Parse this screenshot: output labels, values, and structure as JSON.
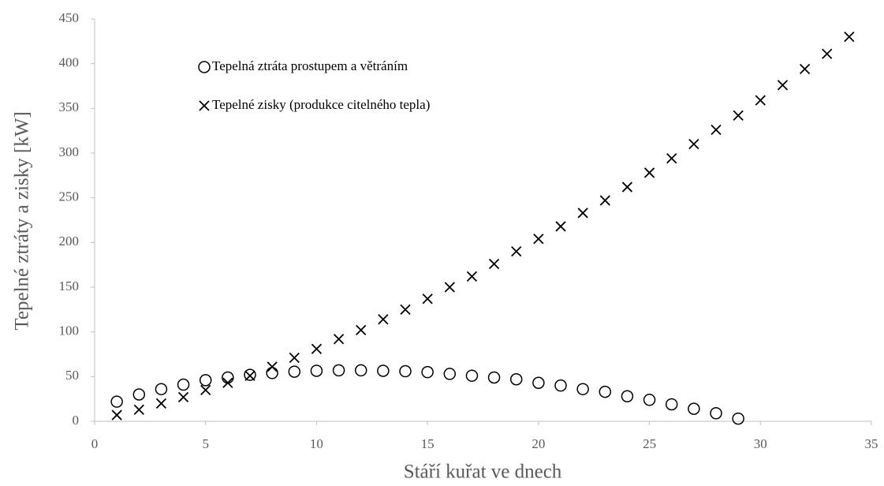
{
  "chart_data": {
    "type": "scatter",
    "xlabel": "Stáří kuřat ve dnech",
    "ylabel": "Tepelné ztráty a zisky [kW]",
    "xlim": [
      0,
      35
    ],
    "xticks": [
      0,
      5,
      10,
      15,
      20,
      25,
      30,
      35
    ],
    "ylim": [
      0,
      450
    ],
    "yticks": [
      0,
      50,
      100,
      150,
      200,
      250,
      300,
      350,
      400,
      450
    ],
    "grid": false,
    "legend": "upper left",
    "series": [
      {
        "name": "Tepelná ztráta prostupem a větráním",
        "color": "#000000",
        "marker": "circle",
        "x": [
          1,
          2,
          3,
          4,
          5,
          6,
          7,
          8,
          9,
          10,
          11,
          12,
          13,
          14,
          15,
          16,
          17,
          18,
          19,
          20,
          21,
          22,
          23,
          24,
          25,
          26,
          27,
          28,
          29
        ],
        "values": [
          22,
          30,
          36,
          41,
          46,
          49,
          52,
          54,
          55.5,
          56.5,
          57,
          57,
          56.5,
          56,
          55,
          53,
          51,
          49,
          47,
          43,
          40,
          36,
          33,
          28,
          24,
          19,
          14,
          9,
          3
        ]
      },
      {
        "name": "Tepelné zisky (produkce citelného tepla)",
        "color": "#000000",
        "marker": "x",
        "x": [
          1,
          2,
          3,
          4,
          5,
          6,
          7,
          8,
          9,
          10,
          11,
          12,
          13,
          14,
          15,
          16,
          17,
          18,
          19,
          20,
          21,
          22,
          23,
          24,
          25,
          26,
          27,
          28,
          29,
          30,
          31,
          32,
          33,
          34
        ],
        "values": [
          7,
          13,
          20,
          27,
          35,
          43,
          51,
          61,
          71,
          81,
          92,
          102,
          114,
          125,
          137,
          150,
          162,
          176,
          190,
          204,
          218,
          233,
          247,
          262,
          278,
          294,
          310,
          326,
          342,
          359,
          376,
          394,
          411,
          430
        ]
      }
    ]
  }
}
